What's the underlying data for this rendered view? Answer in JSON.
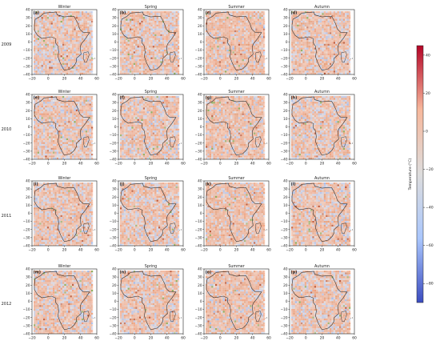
{
  "chart_data": {
    "type": "heatmap",
    "description_free": true,
    "rows": [
      "2009",
      "2010",
      "2011",
      "2012"
    ],
    "columns": [
      "Winter",
      "Spring",
      "Summer",
      "Autumn"
    ],
    "panel_letters": [
      "(a)",
      "(b)",
      "(c)",
      "(d)",
      "(e)",
      "(f)",
      "(g)",
      "(h)",
      "(i)",
      "(j)",
      "(k)",
      "(l)",
      "(m)",
      "(n)",
      "(o)",
      "(p)"
    ],
    "xlim": [
      -20,
      60
    ],
    "ylim": [
      -40,
      40
    ],
    "x_ticks": [
      "−20",
      "0",
      "20",
      "40",
      "60"
    ],
    "y_ticks": [
      "40",
      "30",
      "20",
      "10",
      "0",
      "−10",
      "−20",
      "−30",
      "−40"
    ],
    "colorbar": {
      "label": "Temperature (°C)",
      "range": [
        -90,
        45
      ],
      "ticks": [
        "40",
        "20",
        "0",
        "−20",
        "−40",
        "−60",
        "−80"
      ],
      "colormap": [
        "#3b4cc0",
        "#aac7fd",
        "#dddcdc",
        "#f7b89c",
        "#b40426"
      ]
    }
  }
}
